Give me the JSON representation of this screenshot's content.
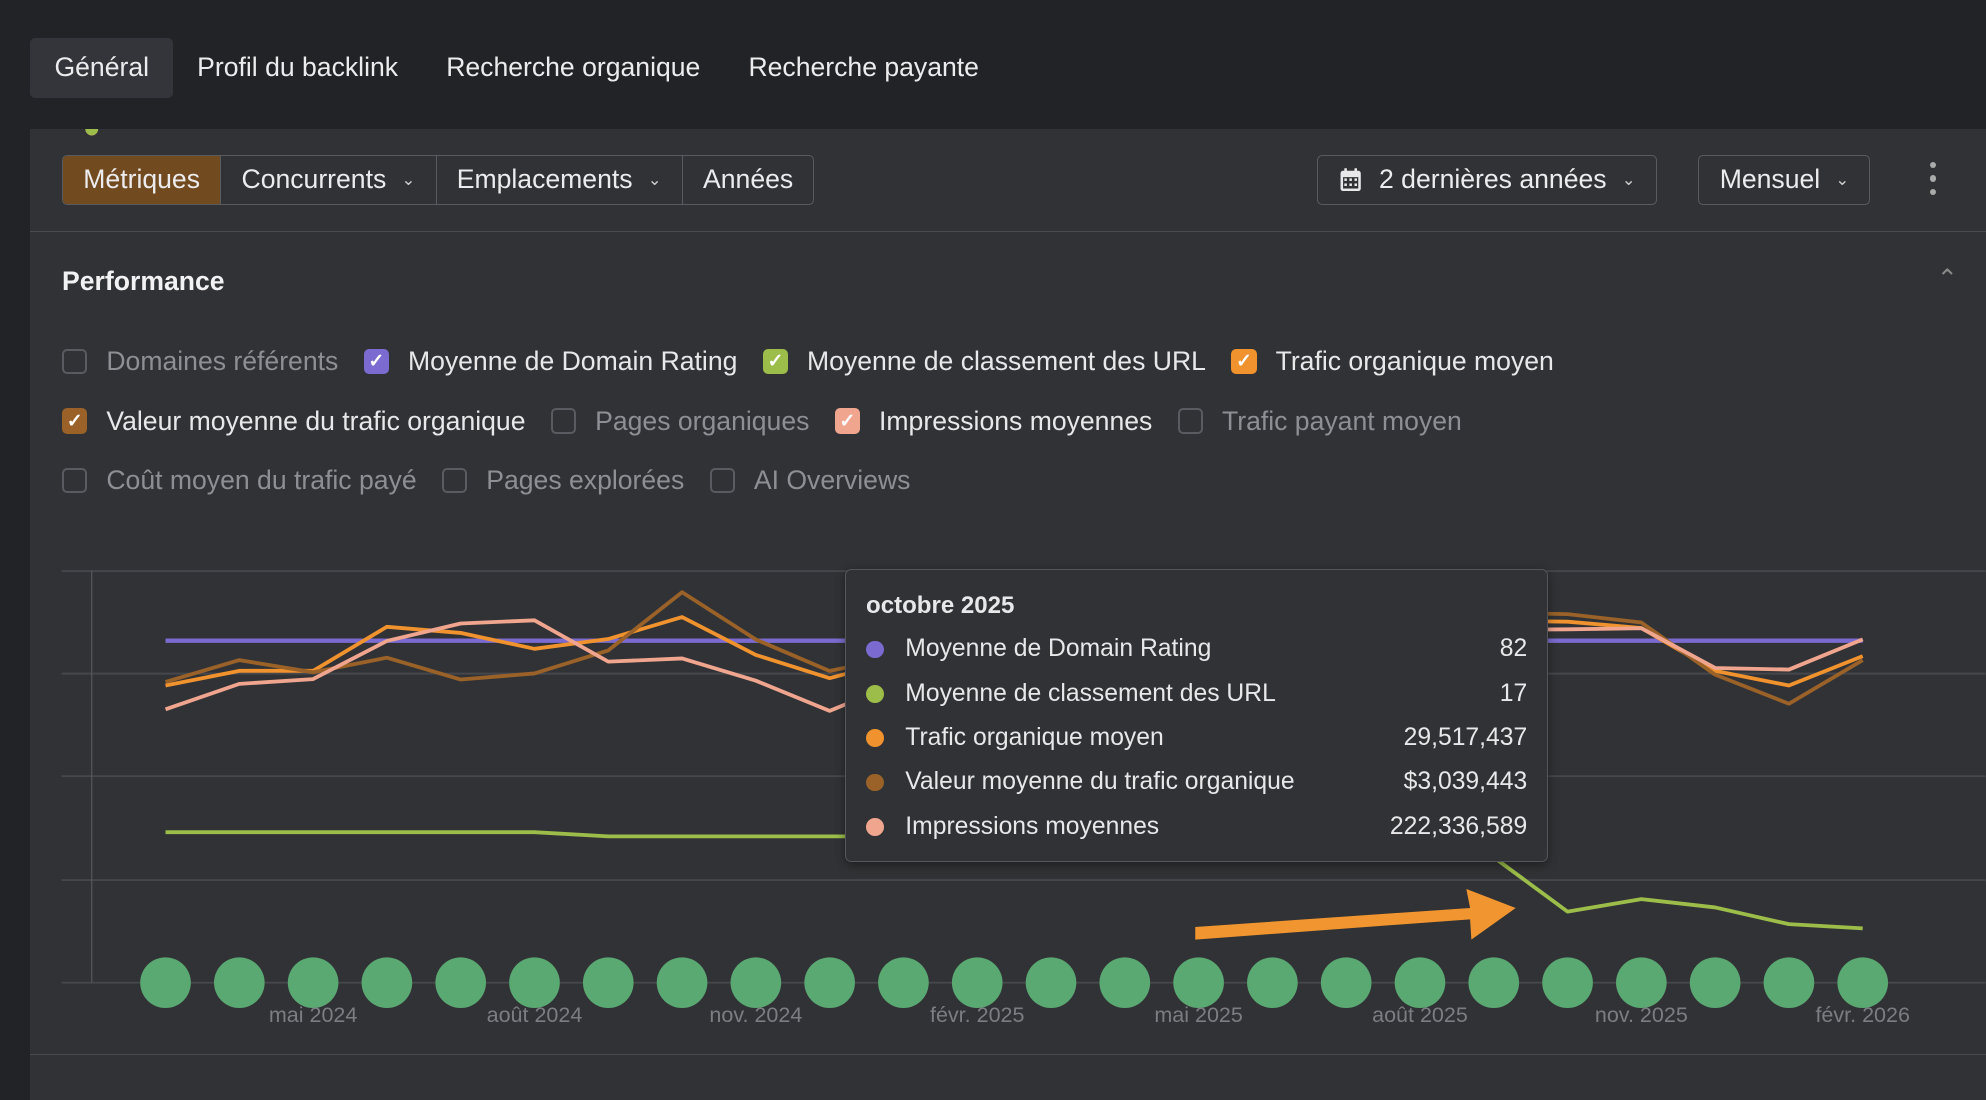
{
  "tabs": [
    {
      "label": "Général",
      "active": true
    },
    {
      "label": "Profil du backlink"
    },
    {
      "label": "Recherche organique"
    },
    {
      "label": "Recherche payante"
    }
  ],
  "toolbar": {
    "segments": [
      "Métriques",
      "Concurrents",
      "Emplacements",
      "Années"
    ],
    "period": "2 dernières années",
    "interval": "Mensuel"
  },
  "section": {
    "title": "Performance"
  },
  "metrics": [
    {
      "label": "Domaines référents",
      "checked": false
    },
    {
      "label": "Moyenne de Domain Rating",
      "checked": true,
      "color": "#7b6bd0"
    },
    {
      "label": "Moyenne de classement des URL",
      "checked": true,
      "color": "#9cbd4a"
    },
    {
      "label": "Trafic organique moyen",
      "checked": true,
      "color": "#f0922e"
    },
    {
      "label": "Valeur moyenne du trafic organique",
      "checked": true,
      "color": "#9a6228"
    },
    {
      "label": "Pages organiques",
      "checked": false
    },
    {
      "label": "Impressions moyennes",
      "checked": true,
      "color": "#f0a58f"
    },
    {
      "label": "Trafic payant moyen",
      "checked": false
    },
    {
      "label": "Coût moyen du trafic payé",
      "checked": false
    },
    {
      "label": "Pages explorées",
      "checked": false
    },
    {
      "label": "AI Overviews",
      "checked": false
    }
  ],
  "tooltip": {
    "title": "octobre 2025",
    "rows": [
      {
        "label": "Moyenne de Domain Rating",
        "value": "82",
        "color": "#7b6bd0"
      },
      {
        "label": "Moyenne de classement des URL",
        "value": "17",
        "color": "#9cbd4a"
      },
      {
        "label": "Trafic organique moyen",
        "value": "29,517,437",
        "color": "#f0922e"
      },
      {
        "label": "Valeur moyenne du trafic organique",
        "value": "$3,039,443",
        "color": "#9a6228"
      },
      {
        "label": "Impressions moyennes",
        "value": "222,336,589",
        "color": "#f0a58f"
      }
    ]
  },
  "chart_data": {
    "type": "line",
    "x": [
      "mars 2024",
      "avr. 2024",
      "mai 2024",
      "juin 2024",
      "juil. 2024",
      "août 2024",
      "sept. 2024",
      "oct. 2024",
      "nov. 2024",
      "déc. 2024",
      "janv. 2025",
      "févr. 2025",
      "mars 2025",
      "avr. 2025",
      "mai 2025",
      "juin 2025",
      "juil. 2025",
      "août 2025",
      "sept. 2025",
      "oct. 2025",
      "nov. 2025",
      "déc. 2025",
      "janv. 2026",
      "févr. 2026"
    ],
    "x_tick_labels": [
      "mai 2024",
      "août 2024",
      "nov. 2024",
      "févr. 2025",
      "mai 2025",
      "août 2025",
      "nov. 2025",
      "févr. 2026"
    ],
    "highlighted": "octobre 2025",
    "grid": true,
    "annotation_markers": 24,
    "annotation_color": "#5aa872",
    "arrow_color": "#f0952f",
    "series": [
      {
        "name": "Moyenne de Domain Rating",
        "color": "#7b6bd0",
        "values": [
          82,
          82,
          82,
          82,
          82,
          82,
          82,
          82,
          82,
          82,
          82,
          82,
          82,
          82,
          82,
          82,
          82,
          82,
          82,
          82,
          82,
          82,
          82,
          82
        ]
      },
      {
        "name": "Moyenne de classement des URL",
        "color": "#9cbd4a",
        "values": [
          36,
          36,
          36,
          36,
          36,
          36,
          35,
          35,
          35,
          35,
          35,
          35,
          35,
          35,
          35,
          35,
          35,
          35,
          30,
          17,
          20,
          18,
          14,
          13
        ]
      },
      {
        "name": "Trafic organique moyen",
        "color": "#f0922e",
        "values": [
          24300000,
          25500000,
          25500000,
          29100000,
          28600000,
          27300000,
          28100000,
          29900000,
          26800000,
          24900000,
          26500000,
          27000000,
          27500000,
          28000000,
          28200000,
          28500000,
          29000000,
          29300000,
          29600000,
          29517437,
          29000000,
          25500000,
          24300000,
          26700000
        ]
      },
      {
        "name": "Valeur moyenne du trafic organique",
        "color": "#9a6228",
        "values": [
          2480000,
          2660000,
          2560000,
          2680000,
          2500000,
          2550000,
          2740000,
          3220000,
          2830000,
          2570000,
          2700000,
          2750000,
          2800000,
          2850000,
          2900000,
          2950000,
          3000000,
          3020000,
          3050000,
          3039443,
          2970000,
          2540000,
          2300000,
          2660000
        ]
      },
      {
        "name": "Impressions moyennes",
        "color": "#f0a58f",
        "values": [
          172000000,
          188000000,
          191000000,
          215000000,
          226000000,
          228000000,
          202000000,
          204000000,
          190000000,
          171000000,
          190000000,
          200000000,
          205000000,
          210000000,
          212000000,
          215000000,
          218000000,
          220000000,
          222000000,
          222336589,
          223000000,
          198000000,
          197000000,
          216000000
        ]
      }
    ]
  }
}
